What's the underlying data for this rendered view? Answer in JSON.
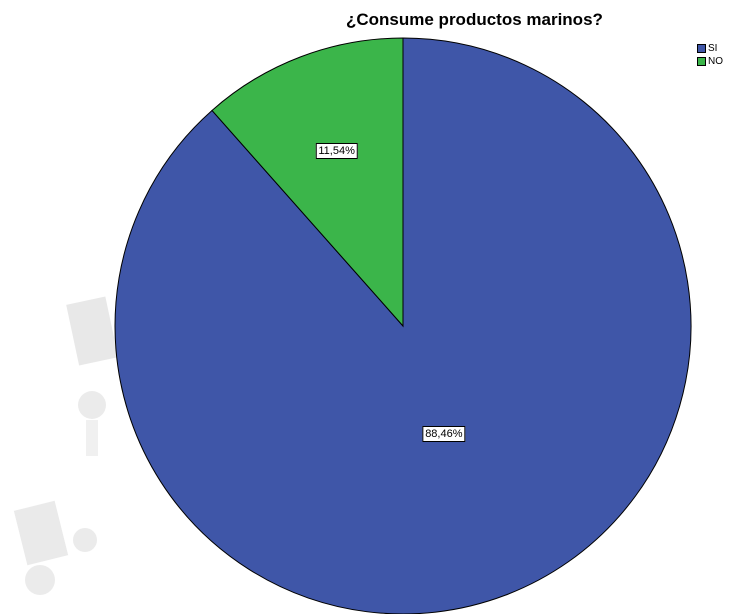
{
  "chart_data": {
    "type": "pie",
    "title": "¿Consume productos marinos?",
    "categories": [
      "SI",
      "NO"
    ],
    "values": [
      88.46,
      11.54
    ],
    "data_labels": [
      "88,46%",
      "11,54%"
    ],
    "colors": [
      "#3f56a8",
      "#3bb54a"
    ],
    "legend_position": "top-right",
    "start_angle": "12 o'clock",
    "direction": "clockwise"
  }
}
